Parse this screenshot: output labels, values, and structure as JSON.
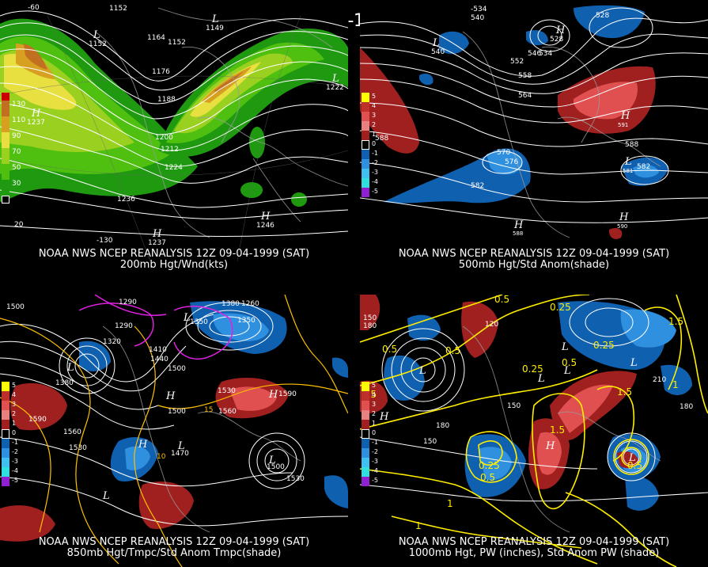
{
  "header": {
    "title": "12Z 09-04-1999 (SAT)"
  },
  "panels": [
    {
      "id": "p200",
      "caption_line1": "NOAA NWS NCEP REANALYSIS 12Z 09-04-1999 (SAT)",
      "caption_line2": "200mb Hgt/Wnd(kts)",
      "legend": [
        {
          "label": "130",
          "color": "#c07020"
        },
        {
          "label": "110",
          "color": "#d8a020"
        },
        {
          "label": "90",
          "color": "#e8e040"
        },
        {
          "label": "70",
          "color": "#9ad020"
        },
        {
          "label": "50",
          "color": "#4fbf10"
        },
        {
          "label": "30",
          "color": "#1f9a10"
        }
      ],
      "contour_labels": [
        "1152",
        "1164",
        "1152",
        "1176",
        "1188",
        "1200",
        "1212",
        "1224",
        "1236"
      ],
      "centers": [
        "L",
        "L",
        "L",
        "H",
        "H",
        "H"
      ],
      "center_values": [
        "1152",
        "1149",
        "1222",
        "1237",
        "1246",
        "1237"
      ],
      "lon_labels": [
        "-60",
        "-130",
        "20"
      ]
    },
    {
      "id": "p500",
      "caption_line1": "NOAA NWS NCEP REANALYSIS 12Z 09-04-1999 (SAT)",
      "caption_line2": "500mb Hgt/Std Anom(shade)",
      "legend": [
        {
          "label": "5",
          "color": "#ffff00"
        },
        {
          "label": "4",
          "color": "#c0302b"
        },
        {
          "label": "3",
          "color": "#e05050"
        },
        {
          "label": "2",
          "color": "#e88080"
        },
        {
          "label": "1",
          "color": "#a02020"
        },
        {
          "label": "0",
          "color": "#000000"
        },
        {
          "label": "-1",
          "color": "#1060b0"
        },
        {
          "label": "-2",
          "color": "#3090e0"
        },
        {
          "label": "-3",
          "color": "#40c0f0"
        },
        {
          "label": "-4",
          "color": "#30e0e0"
        },
        {
          "label": "-5",
          "color": "#9020d0"
        }
      ],
      "contour_labels": [
        "-534",
        "540",
        "528",
        "540",
        "546",
        "552",
        "534",
        "528",
        "558",
        "564",
        "570",
        "576",
        "582",
        "588",
        "588",
        "582",
        "591",
        "581",
        "588",
        "590"
      ],
      "centers": [
        "L",
        "H",
        "L",
        "H",
        "H",
        "H"
      ]
    },
    {
      "id": "p850",
      "caption_line1": "NOAA NWS NCEP REANALYSIS 12Z 09-04-1999 (SAT)",
      "caption_line2": "850mb Hgt/Tmpc/Std Anom Tmpc(shade)",
      "legend": [
        {
          "label": "5",
          "color": "#ffff00"
        },
        {
          "label": "4",
          "color": "#c0302b"
        },
        {
          "label": "3",
          "color": "#e05050"
        },
        {
          "label": "2",
          "color": "#e88080"
        },
        {
          "label": "1",
          "color": "#a02020"
        },
        {
          "label": "0",
          "color": "#000000"
        },
        {
          "label": "-1",
          "color": "#1060b0"
        },
        {
          "label": "-2",
          "color": "#3090e0"
        },
        {
          "label": "-3",
          "color": "#40c0f0"
        },
        {
          "label": "-4",
          "color": "#30e0e0"
        },
        {
          "label": "-5",
          "color": "#9020d0"
        }
      ],
      "contour_labels": [
        "1290",
        "1380",
        "1260",
        "1500",
        "1290",
        "1350",
        "1350",
        "1320",
        "1410",
        "1440",
        "1500",
        "1380",
        "1500",
        "1530",
        "1560",
        "1590",
        "1590",
        "1560",
        "1530",
        "1470",
        "1500",
        "1530",
        "15",
        "10"
      ],
      "centers": [
        "L",
        "L",
        "L",
        "H",
        "H",
        "L",
        "H",
        "L"
      ]
    },
    {
      "id": "p1000",
      "caption_line1": "NOAA NWS NCEP REANALYSIS 12Z 09-04-1999 (SAT)",
      "caption_line2": "1000mb Hgt, PW (inches), Std Anom PW (shade)",
      "legend": [
        {
          "label": "5",
          "color": "#ffff00"
        },
        {
          "label": "4",
          "color": "#c0302b"
        },
        {
          "label": "3",
          "color": "#e05050"
        },
        {
          "label": "2",
          "color": "#e88080"
        },
        {
          "label": "1",
          "color": "#a02020"
        },
        {
          "label": "0",
          "color": "#000000"
        },
        {
          "label": "-1",
          "color": "#1060b0"
        },
        {
          "label": "-2",
          "color": "#3090e0"
        },
        {
          "label": "-3",
          "color": "#40c0f0"
        },
        {
          "label": "-4",
          "color": "#30e0e0"
        },
        {
          "label": "-5",
          "color": "#9020d0"
        }
      ],
      "contour_labels": [
        "150",
        "180",
        "0.5",
        "0.5",
        "120",
        "0.25",
        "0.5",
        "0.25",
        "0.5",
        "0.25",
        "1.5",
        "1",
        "1.5",
        "1.5",
        "150",
        "180",
        "210",
        "180",
        "150",
        "0.25",
        "0.5",
        "0.5",
        "1",
        "1.5",
        "1"
      ],
      "centers": [
        "L",
        "L",
        "H",
        "L",
        "L",
        "H",
        "L",
        "L"
      ]
    }
  ]
}
